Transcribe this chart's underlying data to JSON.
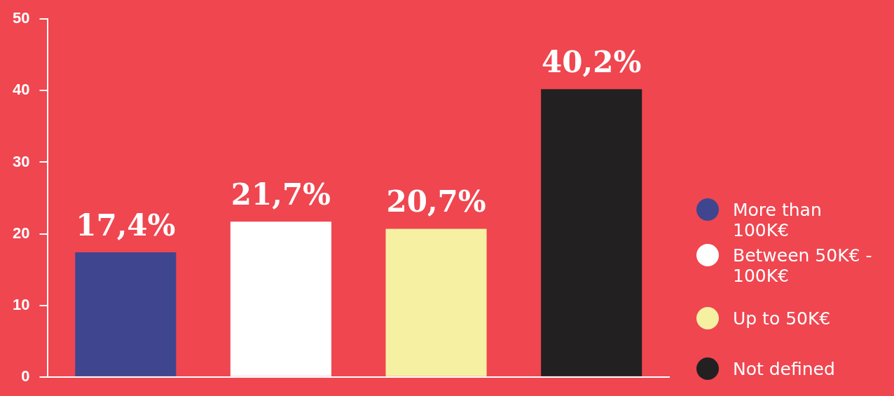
{
  "chart_data": {
    "type": "bar",
    "categories": [
      null,
      null,
      null,
      null
    ],
    "series": [
      {
        "name": "More than 100K€",
        "color": "#3f468f",
        "values": [
          17.4,
          null,
          null,
          null
        ],
        "value_labels": [
          "17,4%",
          null,
          null,
          null
        ]
      },
      {
        "name": "Between 50K€ - 100K€",
        "color": "#ffffff",
        "values": [
          null,
          21.7,
          null,
          null
        ],
        "value_labels": [
          null,
          "21,7%",
          null,
          null
        ]
      },
      {
        "name": "Up to 50K€",
        "color": "#f6f1a2",
        "values": [
          null,
          null,
          20.7,
          null
        ],
        "value_labels": [
          null,
          null,
          "20,7%",
          null
        ]
      },
      {
        "name": "Not defined",
        "color": "#232021",
        "values": [
          null,
          null,
          null,
          40.2
        ],
        "value_labels": [
          null,
          null,
          null,
          "40,2%"
        ]
      }
    ],
    "ylim": [
      0,
      50
    ],
    "yticks": [
      0,
      10,
      20,
      30,
      40,
      50
    ],
    "grid": false,
    "legend": "right"
  }
}
